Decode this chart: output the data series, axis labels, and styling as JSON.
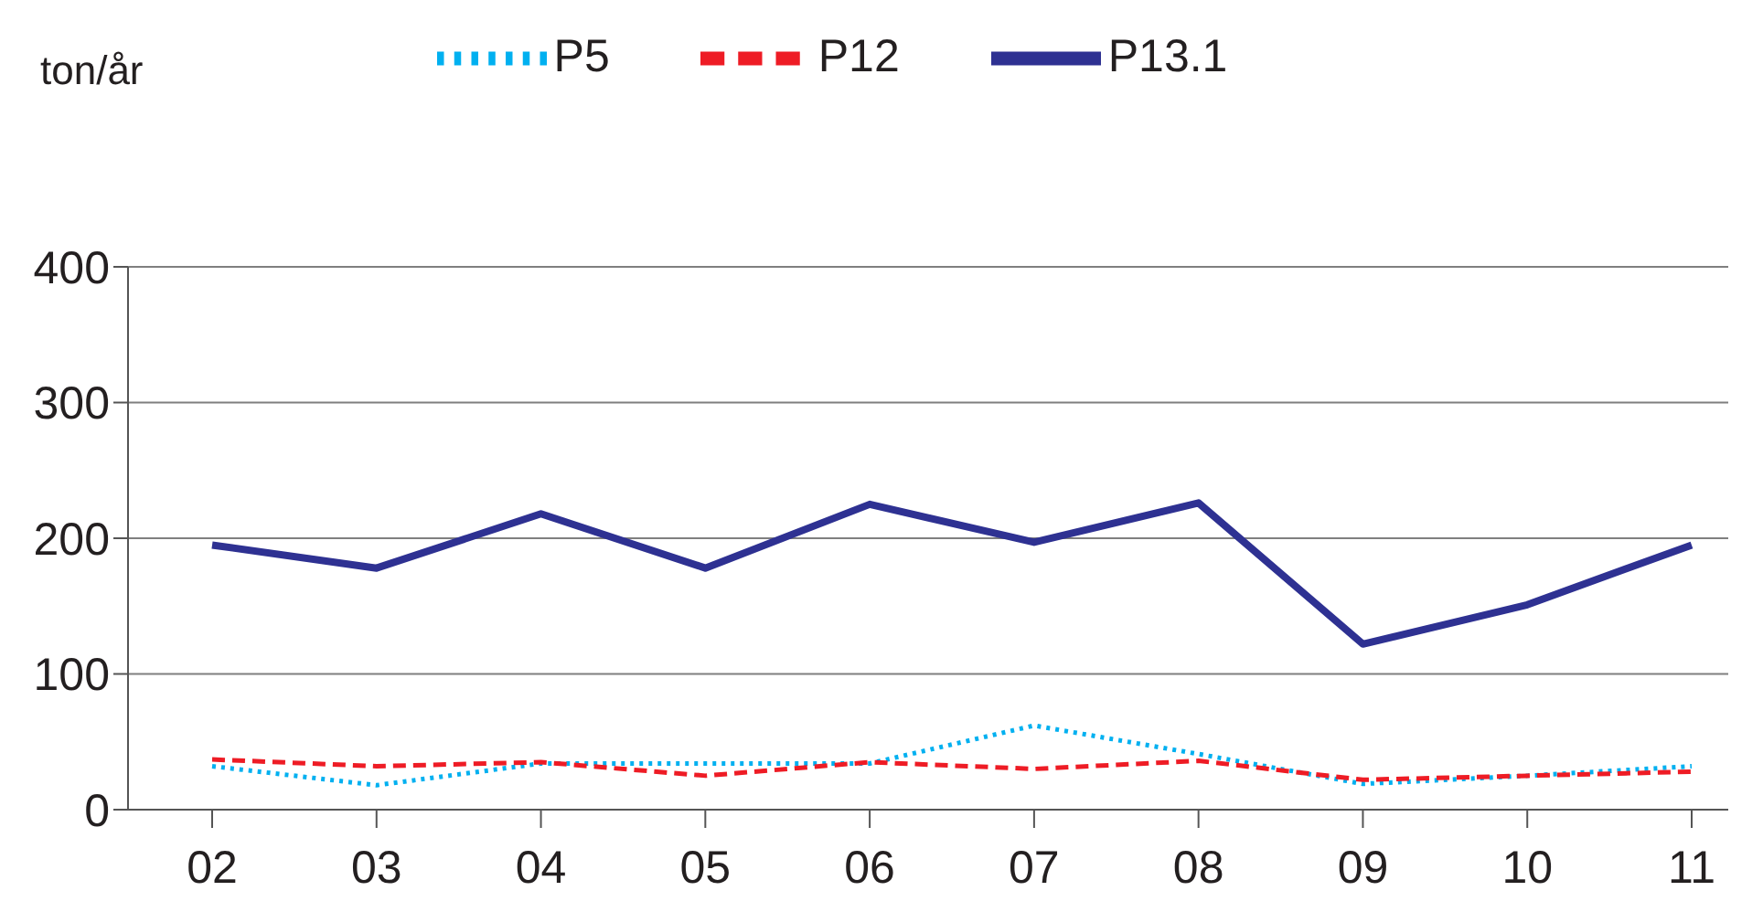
{
  "chart_data": {
    "type": "line",
    "ylabel": "ton/år",
    "categories": [
      "02",
      "03",
      "04",
      "05",
      "06",
      "07",
      "08",
      "09",
      "10",
      "11"
    ],
    "series": [
      {
        "name": "P5",
        "color": "#00b0f0",
        "line_style": "dotted",
        "values": [
          32,
          18,
          34,
          34,
          34,
          62,
          41,
          19,
          25,
          32
        ]
      },
      {
        "name": "P12",
        "color": "#ee1c25",
        "line_style": "dashed",
        "values": [
          37,
          32,
          35,
          25,
          35,
          30,
          36,
          22,
          25,
          28
        ]
      },
      {
        "name": "P13.1",
        "color": "#2e3192",
        "line_style": "solid",
        "values": [
          195,
          178,
          218,
          178,
          225,
          197,
          226,
          122,
          151,
          195
        ]
      }
    ],
    "ylim": [
      0,
      400
    ],
    "yticks": [
      0,
      100,
      200,
      300,
      400
    ],
    "grid": "y",
    "legend": "top",
    "marker": "none"
  }
}
